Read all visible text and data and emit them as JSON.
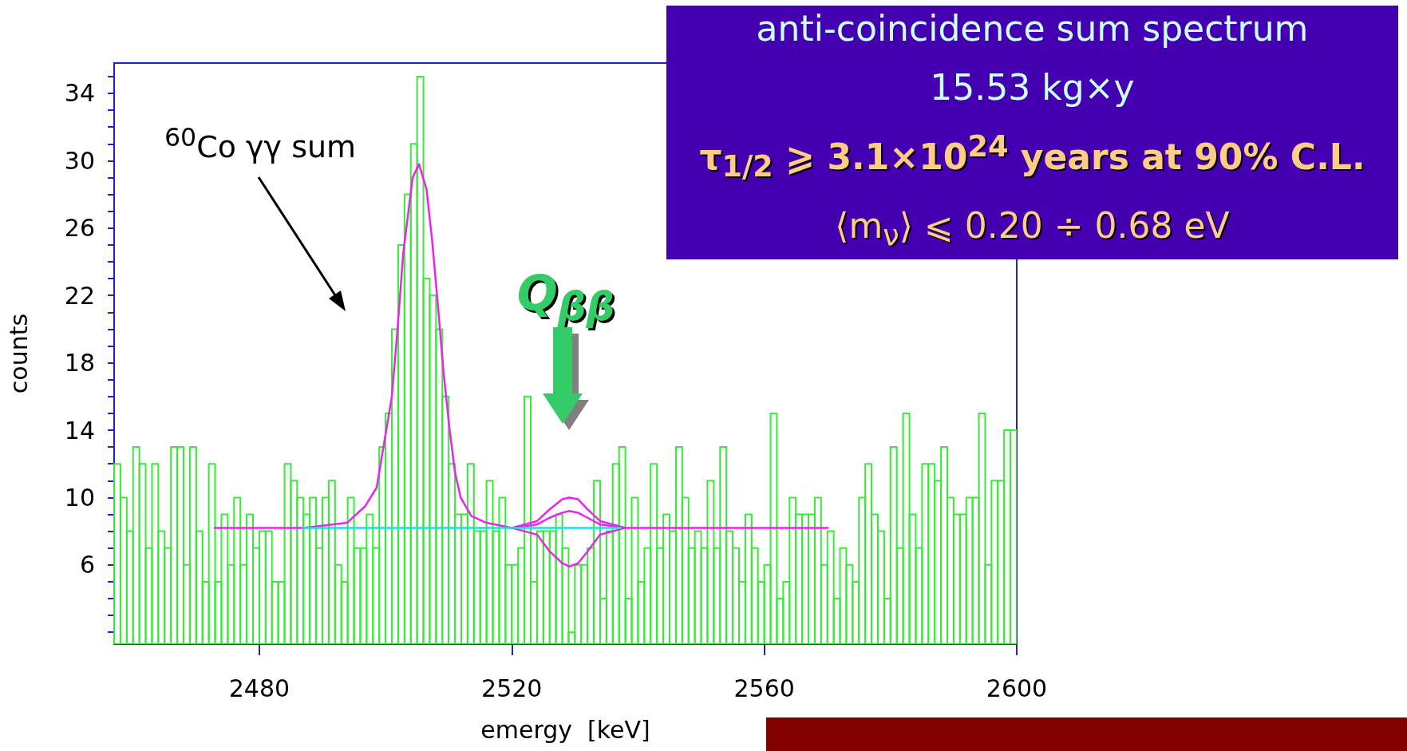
{
  "chart_data": {
    "type": "histogram",
    "xlabel": "emergy  [keV]",
    "ylabel": "counts",
    "xlim": [
      2457,
      2600
    ],
    "xticks": [
      2480,
      2520,
      2560,
      2600
    ],
    "ylim": [
      1.3,
      35.8
    ],
    "yticks": [
      {
        "value": 2,
        "label": null
      },
      {
        "value": 3,
        "label": null
      },
      {
        "value": 4,
        "label": null
      },
      {
        "value": 5,
        "label": null
      },
      6,
      {
        "value": 7,
        "label": null
      },
      {
        "value": 8,
        "label": null
      },
      {
        "value": 9,
        "label": null
      },
      10,
      {
        "value": 11,
        "label": null
      },
      {
        "value": 12,
        "label": null
      },
      {
        "value": 13,
        "label": null
      },
      14,
      {
        "value": 15,
        "label": null
      },
      {
        "value": 16,
        "label": null
      },
      {
        "value": 17,
        "label": null
      },
      18,
      {
        "value": 19,
        "label": null
      },
      {
        "value": 20,
        "label": null
      },
      {
        "value": 21,
        "label": null
      },
      22,
      {
        "value": 23,
        "label": null
      },
      {
        "value": 24,
        "label": null
      },
      {
        "value": 25,
        "label": null
      },
      26,
      {
        "value": 27,
        "label": null
      },
      {
        "value": 28,
        "label": null
      },
      {
        "value": 29,
        "label": null
      },
      30,
      {
        "value": 31,
        "label": null
      },
      {
        "value": 32,
        "label": null
      },
      {
        "value": 33,
        "label": null
      },
      34,
      {
        "value": 35,
        "label": null
      }
    ],
    "grid": false,
    "bins": [
      2457,
      2458,
      2459,
      2460,
      2461,
      2462,
      2463,
      2464,
      2465,
      2466,
      2467,
      2468,
      2469,
      2470,
      2471,
      2472,
      2473,
      2474,
      2475,
      2476,
      2477,
      2478,
      2479,
      2480,
      2481,
      2482,
      2483,
      2484,
      2485,
      2486,
      2487,
      2488,
      2489,
      2490,
      2491,
      2492,
      2493,
      2494,
      2495,
      2496,
      2497,
      2498,
      2499,
      2500,
      2501,
      2502,
      2503,
      2504,
      2505,
      2506,
      2507,
      2508,
      2509,
      2510,
      2511,
      2512,
      2513,
      2514,
      2515,
      2516,
      2517,
      2518,
      2519,
      2520,
      2521,
      2522,
      2523,
      2524,
      2525,
      2526,
      2527,
      2528,
      2529,
      2530,
      2531,
      2532,
      2533,
      2534,
      2535,
      2536,
      2537,
      2538,
      2539,
      2540,
      2541,
      2542,
      2543,
      2544,
      2545,
      2546,
      2547,
      2548,
      2549,
      2550,
      2551,
      2552,
      2553,
      2554,
      2555,
      2556,
      2557,
      2558,
      2559,
      2560,
      2561,
      2562,
      2563,
      2564,
      2565,
      2566,
      2567,
      2568,
      2569,
      2570,
      2571,
      2572,
      2573,
      2574,
      2575,
      2576,
      2577,
      2578,
      2579,
      2580,
      2581,
      2582,
      2583,
      2584,
      2585,
      2586,
      2587,
      2588,
      2589,
      2590,
      2591,
      2592,
      2593,
      2594,
      2595,
      2596,
      2597,
      2598,
      2599,
      2600
    ],
    "series": [
      {
        "color": "#33ee33",
        "values": [
          12,
          10,
          8,
          13,
          12,
          7,
          12,
          8,
          7,
          13,
          13,
          6,
          13,
          8,
          5,
          12,
          5,
          9,
          6,
          10,
          6,
          9,
          7,
          8,
          8,
          5,
          5,
          12,
          11,
          10,
          9,
          10,
          7,
          10,
          11,
          6,
          5,
          10,
          7,
          7,
          9,
          7,
          13,
          15,
          20,
          25,
          28,
          31,
          35,
          23,
          22,
          20,
          16,
          12,
          9,
          9,
          12,
          8,
          8,
          11,
          8,
          10,
          6,
          6,
          7,
          16,
          5,
          8,
          8,
          8,
          9,
          7,
          2,
          6,
          6,
          7,
          11,
          4,
          8,
          12,
          13,
          4,
          10,
          5,
          7,
          12,
          7,
          9,
          8,
          13,
          10,
          7,
          8,
          7,
          11,
          7,
          13,
          8,
          7,
          5,
          9,
          7,
          5,
          6,
          15,
          4,
          5,
          10,
          9,
          9,
          9,
          10,
          6,
          8,
          4,
          7,
          6,
          5,
          10,
          12,
          9,
          8,
          4,
          13,
          7,
          15,
          9,
          7,
          12,
          12,
          11,
          13,
          10,
          9,
          9,
          10,
          10,
          15,
          6,
          11,
          11,
          14,
          14
        ]
      },
      {
        "type": "line",
        "color": "#22dddd",
        "x": [
          2486.7,
          2537.4
        ],
        "values": [
          8.2,
          8.2
        ]
      },
      {
        "type": "line",
        "color": "#ee22ee",
        "x": [
          2472.8,
          2487,
          2493.9,
          2496.8,
          2498.6,
          2499.8,
          2501.0,
          2501.9,
          2502.8,
          2503.4,
          2504.3,
          2505.3,
          2506.5,
          2507.4,
          2508.3,
          2509.2,
          2510.1,
          2511.0,
          2511.9,
          2513.6,
          2516.0,
          2520,
          2524,
          2526,
          2528,
          2529.1,
          2530.5,
          2532,
          2534,
          2538,
          2570.2
        ],
        "values": [
          8.2,
          8.2,
          8.5,
          9.5,
          10.6,
          13.3,
          16,
          20,
          24.5,
          26.3,
          29,
          29.8,
          28.3,
          25.2,
          21.4,
          17.4,
          14.2,
          11.5,
          10,
          8.9,
          8.5,
          8.2,
          8.4,
          8.8,
          9.1,
          9.2,
          9.1,
          8.8,
          8.4,
          8.2,
          8.2
        ]
      },
      {
        "type": "line",
        "color": "#ee22ee",
        "x": [
          2520,
          2524,
          2526,
          2528,
          2529.1,
          2530.5,
          2532,
          2534,
          2538
        ],
        "values": [
          8.2,
          8.6,
          9.3,
          9.9,
          10.0,
          9.9,
          9.3,
          8.6,
          8.2
        ]
      },
      {
        "type": "line",
        "color": "#ee22ee",
        "x": [
          2520,
          2524,
          2526,
          2528,
          2529.1,
          2530.5,
          2532,
          2534,
          2538
        ],
        "values": [
          8.2,
          7.8,
          6.8,
          6.1,
          5.9,
          6.1,
          6.8,
          7.8,
          8.2
        ]
      }
    ],
    "annotations": [
      "$^{60}$Co γγ  sum",
      "Q$_{ββ}$",
      "anti-coincidence sum spectrum",
      "15.53 kg×y",
      "τ$_{1/2}$ ⩾ 3.1×10$^{24}$ years at 90% C.L.",
      "⟨m$_{ν}$⟩ ⩽ 0.20 ÷ 0.68 eV"
    ]
  }
}
